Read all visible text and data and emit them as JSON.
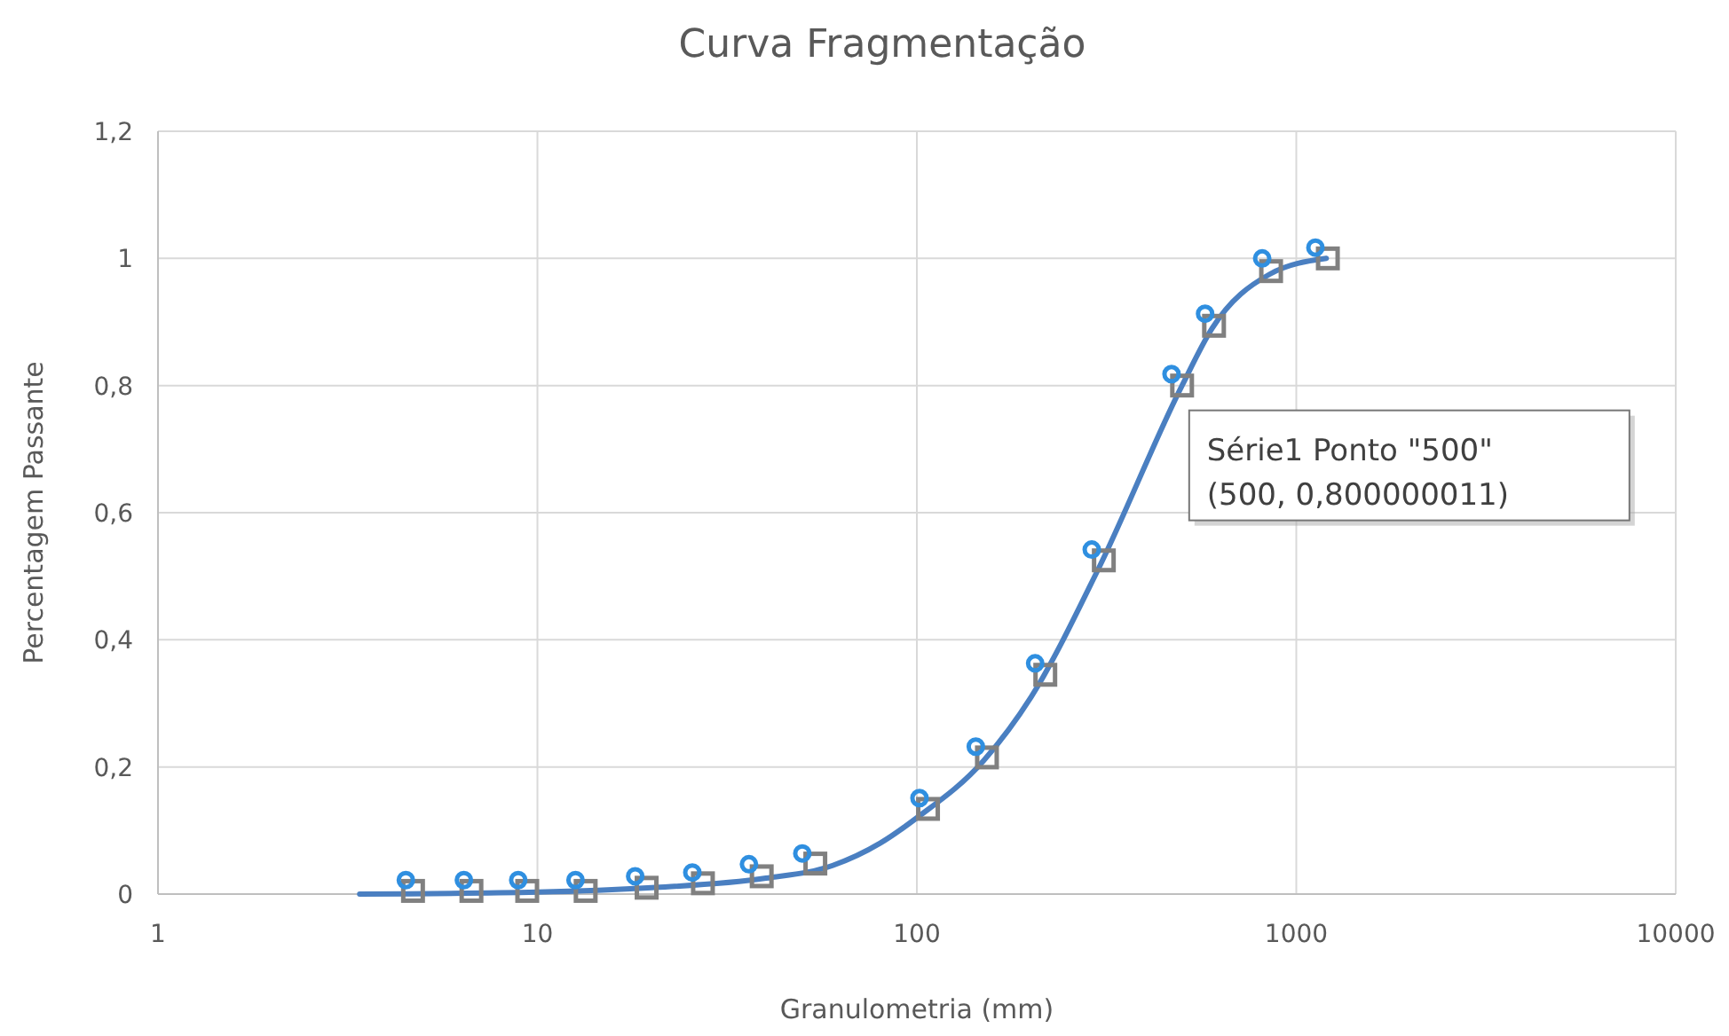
{
  "chart_data": {
    "type": "line",
    "title": "Curva Fragmentação",
    "xlabel": "Granulometria (mm)",
    "ylabel": "Percentagem Passante",
    "log": "x",
    "grid": true,
    "xlim": [
      1,
      10000
    ],
    "xticks": [
      1,
      10,
      100,
      1000,
      10000
    ],
    "ylim": [
      0,
      1.2
    ],
    "yticks": [
      {
        "value": 0,
        "label": "0"
      },
      {
        "value": 0.2,
        "label": "0,2"
      },
      {
        "value": 0.4,
        "label": "0,4"
      },
      {
        "value": 0.6,
        "label": "0,6"
      },
      {
        "value": 0.8,
        "label": "0,8"
      },
      {
        "value": 1,
        "label": "1"
      },
      {
        "value": 1.2,
        "label": "1,2"
      }
    ],
    "series": [
      {
        "color": "#4a7fc1",
        "marker": "none",
        "x": [
          3.4,
          10,
          20,
          40,
          60,
          80,
          100,
          150,
          200,
          300,
          500,
          600,
          850,
          1200
        ],
        "values": [
          0,
          0.003,
          0.01,
          0.025,
          0.045,
          0.08,
          0.12,
          0.21,
          0.31,
          0.51,
          0.8,
          0.89,
          0.975,
          1.0
        ]
      },
      {
        "type": "scatter",
        "color": "#808080",
        "marker": "square",
        "x": [
          4.7,
          6.7,
          9.4,
          13.4,
          19.4,
          27.3,
          39,
          54,
          107,
          153,
          218,
          311,
          500,
          607,
          858,
          1211
        ],
        "values": [
          0.005,
          0.005,
          0.005,
          0.005,
          0.01,
          0.017,
          0.028,
          0.048,
          0.134,
          0.215,
          0.345,
          0.525,
          0.8,
          0.894,
          0.98,
          1.0
        ]
      },
      {
        "type": "scatter",
        "color": "#2f8fe0",
        "marker": "circle",
        "x": [
          4.5,
          6.4,
          8.9,
          12.6,
          18.1,
          25.6,
          36.1,
          49.9,
          101.6,
          143,
          205,
          289,
          469,
          575,
          813,
          1123
        ],
        "values": [
          0.022,
          0.022,
          0.022,
          0.022,
          0.028,
          0.034,
          0.047,
          0.064,
          0.151,
          0.232,
          0.363,
          0.542,
          0.818,
          0.913,
          1.0,
          1.017
        ]
      }
    ],
    "annotations": [
      {
        "text": "Série1 Ponto \"500\"\n(500, 0,800000011)",
        "x": 500,
        "y": 0.8
      }
    ]
  }
}
